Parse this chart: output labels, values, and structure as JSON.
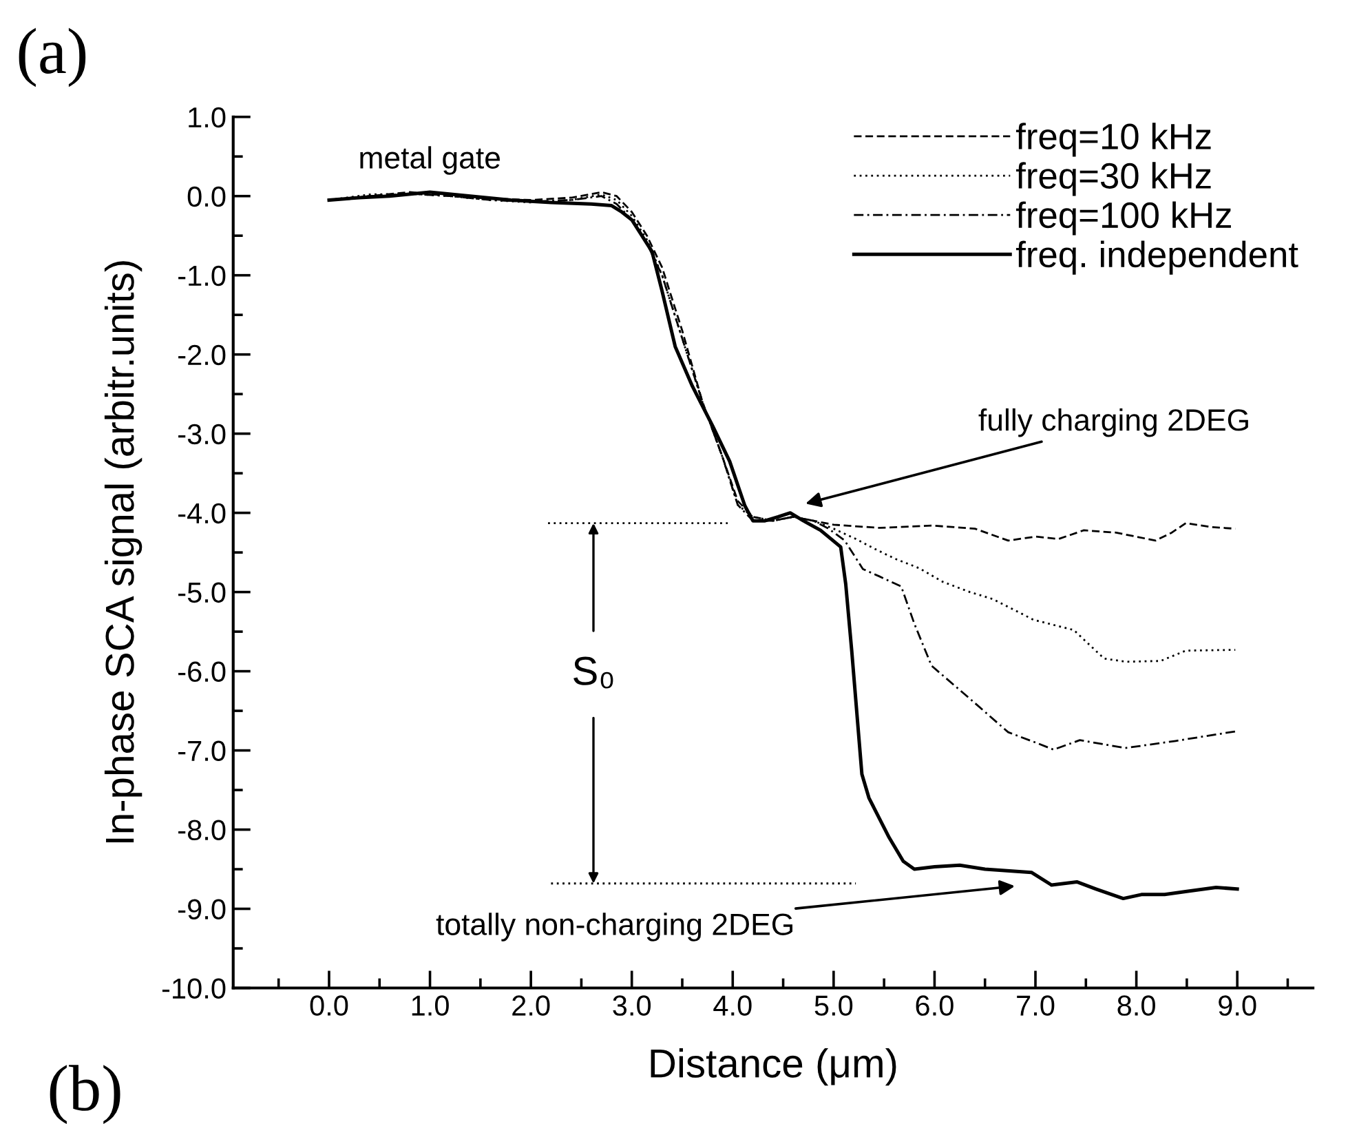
{
  "chart_data": {
    "type": "line",
    "title": "(a)",
    "xlabel": "Distance (μm)",
    "ylabel": "In-phase SCA signal (arbitr.units)",
    "xlim": [
      -0.95,
      9.75
    ],
    "ylim": [
      -10,
      1
    ],
    "xticks": [
      {
        "value": -0.5,
        "label": null
      },
      {
        "value": 0,
        "label": "0.0"
      },
      {
        "value": 0.5,
        "label": null
      },
      {
        "value": 1,
        "label": "1.0"
      },
      {
        "value": 1.5,
        "label": null
      },
      {
        "value": 2,
        "label": "2.0"
      },
      {
        "value": 2.5,
        "label": null
      },
      {
        "value": 3,
        "label": "3.0"
      },
      {
        "value": 3.5,
        "label": null
      },
      {
        "value": 4,
        "label": "4.0"
      },
      {
        "value": 4.5,
        "label": null
      },
      {
        "value": 5,
        "label": "5.0"
      },
      {
        "value": 5.5,
        "label": null
      },
      {
        "value": 6,
        "label": "6.0"
      },
      {
        "value": 6.5,
        "label": null
      },
      {
        "value": 7,
        "label": "7.0"
      },
      {
        "value": 7.5,
        "label": null
      },
      {
        "value": 8,
        "label": "8.0"
      },
      {
        "value": 8.5,
        "label": null
      },
      {
        "value": 9,
        "label": "9.0"
      },
      {
        "value": 9.5,
        "label": null
      }
    ],
    "yticks": [
      {
        "value": 1,
        "label": "1.0"
      },
      {
        "value": 0.5,
        "label": null
      },
      {
        "value": 0,
        "label": "0.0"
      },
      {
        "value": -0.5,
        "label": null
      },
      {
        "value": -1,
        "label": "-1.0"
      },
      {
        "value": -1.5,
        "label": null
      },
      {
        "value": -2,
        "label": "-2.0"
      },
      {
        "value": -2.5,
        "label": null
      },
      {
        "value": -3,
        "label": "-3.0"
      },
      {
        "value": -3.5,
        "label": null
      },
      {
        "value": -4,
        "label": "-4.0"
      },
      {
        "value": -4.5,
        "label": null
      },
      {
        "value": -5,
        "label": "-5.0"
      },
      {
        "value": -5.5,
        "label": null
      },
      {
        "value": -6,
        "label": "-6.0"
      },
      {
        "value": -6.5,
        "label": null
      },
      {
        "value": -7,
        "label": "-7.0"
      },
      {
        "value": -7.5,
        "label": null
      },
      {
        "value": -8,
        "label": "-8.0"
      },
      {
        "value": -8.5,
        "label": null
      },
      {
        "value": -9,
        "label": "-9.0"
      },
      {
        "value": -9.5,
        "label": null
      },
      {
        "value": -10,
        "label": "-10.0"
      }
    ],
    "grid": false,
    "legend": "top right",
    "marker": "none",
    "series": [
      {
        "name": "freq=10 kHz",
        "color": "#000000",
        "line_style": "dashed",
        "x": [
          0.0,
          0.4,
          0.8,
          1.2,
          1.6,
          2.0,
          2.4,
          2.7,
          2.85,
          3.0,
          3.15,
          3.3,
          3.5,
          3.7,
          3.9,
          4.05,
          4.2,
          4.4,
          4.6,
          4.8,
          5.0,
          5.46,
          5.97,
          6.4,
          6.73,
          7.0,
          7.23,
          7.48,
          7.8,
          8.19,
          8.35,
          8.49,
          8.75,
          8.98
        ],
        "values": [
          -0.05,
          0.0,
          0.05,
          0.0,
          -0.03,
          -0.05,
          -0.02,
          0.05,
          0.0,
          -0.2,
          -0.5,
          -0.9,
          -1.7,
          -2.6,
          -3.3,
          -3.85,
          -4.05,
          -4.1,
          -4.05,
          -4.1,
          -4.15,
          -4.19,
          -4.16,
          -4.2,
          -4.35,
          -4.3,
          -4.33,
          -4.22,
          -4.25,
          -4.35,
          -4.25,
          -4.13,
          -4.18,
          -4.2
        ]
      },
      {
        "name": "freq=30 kHz",
        "color": "#000000",
        "line_style": "dotted",
        "x": [
          0.0,
          0.4,
          0.8,
          1.2,
          1.6,
          2.0,
          2.4,
          2.7,
          2.85,
          3.0,
          3.15,
          3.3,
          3.5,
          3.7,
          3.9,
          4.05,
          4.2,
          4.4,
          4.6,
          4.8,
          5.0,
          5.22,
          5.4,
          5.61,
          5.85,
          6.08,
          6.35,
          6.58,
          6.98,
          7.38,
          7.68,
          7.9,
          8.24,
          8.49,
          8.98
        ],
        "values": [
          -0.05,
          0.02,
          0.03,
          0.0,
          -0.05,
          -0.08,
          -0.05,
          0.02,
          -0.05,
          -0.25,
          -0.55,
          -1.0,
          -1.8,
          -2.6,
          -3.3,
          -3.9,
          -4.05,
          -4.1,
          -4.05,
          -4.1,
          -4.2,
          -4.33,
          -4.45,
          -4.58,
          -4.7,
          -4.87,
          -5.0,
          -5.09,
          -5.35,
          -5.48,
          -5.84,
          -5.88,
          -5.87,
          -5.74,
          -5.73
        ]
      },
      {
        "name": "freq=100 kHz",
        "color": "#000000",
        "line_style": "dashdot",
        "x": [
          0.0,
          0.4,
          0.8,
          1.2,
          1.6,
          2.0,
          2.4,
          2.7,
          2.85,
          3.0,
          3.15,
          3.3,
          3.5,
          3.7,
          3.9,
          4.05,
          4.2,
          4.4,
          4.6,
          4.8,
          4.95,
          5.11,
          5.29,
          5.45,
          5.67,
          5.8,
          5.97,
          6.38,
          6.73,
          7.0,
          7.18,
          7.44,
          7.89,
          8.39,
          8.98
        ],
        "values": [
          -0.05,
          0.0,
          0.03,
          0.0,
          -0.05,
          -0.07,
          -0.05,
          0.0,
          -0.1,
          -0.3,
          -0.6,
          -1.0,
          -1.8,
          -2.6,
          -3.3,
          -3.9,
          -4.1,
          -4.1,
          -4.05,
          -4.1,
          -4.2,
          -4.35,
          -4.71,
          -4.8,
          -4.93,
          -5.4,
          -5.93,
          -6.38,
          -6.77,
          -6.9,
          -6.99,
          -6.87,
          -6.97,
          -6.88,
          -6.76
        ]
      },
      {
        "name": "freq. independent",
        "color": "#000000",
        "line_style": "solid",
        "x": [
          0.0,
          0.3,
          0.6,
          1.0,
          1.4,
          1.8,
          2.2,
          2.6,
          2.8,
          2.9,
          3.0,
          3.1,
          3.2,
          3.3,
          3.43,
          3.6,
          3.8,
          3.97,
          4.12,
          4.2,
          4.32,
          4.45,
          4.57,
          4.7,
          4.87,
          5.07,
          5.12,
          5.18,
          5.28,
          5.35,
          5.43,
          5.55,
          5.69,
          5.8,
          6.0,
          6.25,
          6.5,
          6.96,
          7.16,
          7.41,
          7.6,
          7.87,
          8.05,
          8.28,
          8.5,
          8.79,
          9.0
        ],
        "values": [
          -0.05,
          -0.02,
          0.0,
          0.05,
          0.0,
          -0.05,
          -0.08,
          -0.1,
          -0.12,
          -0.2,
          -0.3,
          -0.5,
          -0.7,
          -1.2,
          -1.9,
          -2.4,
          -2.9,
          -3.35,
          -3.91,
          -4.1,
          -4.1,
          -4.05,
          -4.0,
          -4.1,
          -4.22,
          -4.43,
          -4.9,
          -5.75,
          -7.3,
          -7.6,
          -7.8,
          -8.1,
          -8.4,
          -8.5,
          -8.47,
          -8.45,
          -8.5,
          -8.54,
          -8.7,
          -8.66,
          -8.75,
          -8.87,
          -8.82,
          -8.82,
          -8.78,
          -8.73,
          -8.75
        ]
      },
      {
        "color": "#000000",
        "line_style": "dotted",
        "x": [
          2.17,
          3.95
        ],
        "values": [
          -4.13,
          -4.13
        ]
      },
      {
        "color": "#000000",
        "line_style": "dotted",
        "x": [
          2.2,
          5.22
        ],
        "values": [
          -8.68,
          -8.68
        ]
      }
    ],
    "annotations": [
      "metal gate",
      "fully charging 2DEG",
      {
        "text": "S₀",
        "x": 2.62,
        "y": -4.13
      },
      "totally non-charging 2DEG",
      "(b)"
    ]
  }
}
